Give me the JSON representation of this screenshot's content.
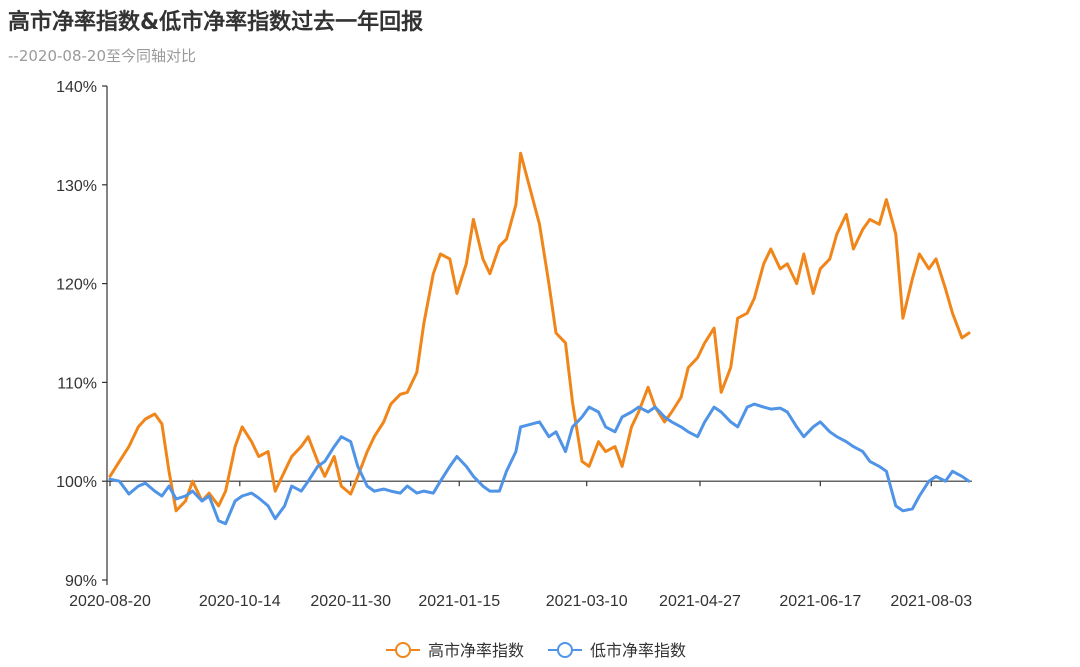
{
  "header": {
    "title": "高市净率指数&低市净率指数过去一年回报",
    "subtitle": "--2020-08-20至今同轴对比"
  },
  "chart_data": {
    "type": "line",
    "title": "高市净率指数&低市净率指数过去一年回报",
    "subtitle": "--2020-08-20至今同轴对比",
    "xlabel": "",
    "ylabel": "",
    "ylim": [
      90,
      140
    ],
    "y_ticks": [
      90,
      100,
      110,
      120,
      130,
      140
    ],
    "y_tick_labels": [
      "90%",
      "100%",
      "110%",
      "120%",
      "130%",
      "140%"
    ],
    "x_ticks": [
      "2020-08-20",
      "2020-10-14",
      "2020-11-30",
      "2021-01-15",
      "2021-03-10",
      "2021-04-27",
      "2021-06-17",
      "2021-08-03"
    ],
    "grid": false,
    "baseline": 100,
    "legend_position": "bottom-center",
    "series": [
      {
        "name": "高市净率指数",
        "color": "#f0861a",
        "points": [
          [
            "2020-08-20",
            100.5
          ],
          [
            "2020-08-24",
            102.0
          ],
          [
            "2020-08-28",
            103.5
          ],
          [
            "2020-09-01",
            105.5
          ],
          [
            "2020-09-04",
            106.3
          ],
          [
            "2020-09-08",
            106.8
          ],
          [
            "2020-09-11",
            105.8
          ],
          [
            "2020-09-14",
            101.0
          ],
          [
            "2020-09-17",
            97.0
          ],
          [
            "2020-09-21",
            98.0
          ],
          [
            "2020-09-24",
            100.0
          ],
          [
            "2020-09-28",
            98.0
          ],
          [
            "2020-10-01",
            98.8
          ],
          [
            "2020-10-05",
            97.5
          ],
          [
            "2020-10-08",
            99.0
          ],
          [
            "2020-10-12",
            103.5
          ],
          [
            "2020-10-15",
            105.5
          ],
          [
            "2020-10-19",
            104.0
          ],
          [
            "2020-10-22",
            102.5
          ],
          [
            "2020-10-26",
            103.0
          ],
          [
            "2020-10-29",
            99.0
          ],
          [
            "2020-11-02",
            101.0
          ],
          [
            "2020-11-05",
            102.5
          ],
          [
            "2020-11-09",
            103.5
          ],
          [
            "2020-11-12",
            104.5
          ],
          [
            "2020-11-16",
            102.0
          ],
          [
            "2020-11-19",
            100.5
          ],
          [
            "2020-11-23",
            102.5
          ],
          [
            "2020-11-26",
            99.5
          ],
          [
            "2020-11-30",
            98.7
          ],
          [
            "2020-12-03",
            100.5
          ],
          [
            "2020-12-07",
            103.0
          ],
          [
            "2020-12-10",
            104.5
          ],
          [
            "2020-12-14",
            106.0
          ],
          [
            "2020-12-17",
            107.8
          ],
          [
            "2020-12-21",
            108.8
          ],
          [
            "2020-12-24",
            109.0
          ],
          [
            "2020-12-28",
            111.0
          ],
          [
            "2020-12-31",
            116.0
          ],
          [
            "2021-01-04",
            121.0
          ],
          [
            "2021-01-07",
            123.0
          ],
          [
            "2021-01-11",
            122.5
          ],
          [
            "2021-01-14",
            119.0
          ],
          [
            "2021-01-18",
            122.0
          ],
          [
            "2021-01-21",
            126.5
          ],
          [
            "2021-01-25",
            122.5
          ],
          [
            "2021-01-28",
            121.0
          ],
          [
            "2021-02-01",
            123.8
          ],
          [
            "2021-02-04",
            124.5
          ],
          [
            "2021-02-08",
            128.0
          ],
          [
            "2021-02-10",
            133.2
          ],
          [
            "2021-02-18",
            126.0
          ],
          [
            "2021-02-22",
            120.0
          ],
          [
            "2021-02-25",
            115.0
          ],
          [
            "2021-03-01",
            114.0
          ],
          [
            "2021-03-04",
            108.0
          ],
          [
            "2021-03-08",
            102.0
          ],
          [
            "2021-03-11",
            101.5
          ],
          [
            "2021-03-15",
            104.0
          ],
          [
            "2021-03-18",
            103.0
          ],
          [
            "2021-03-22",
            103.5
          ],
          [
            "2021-03-25",
            101.5
          ],
          [
            "2021-03-29",
            105.5
          ],
          [
            "2021-04-01",
            107.0
          ],
          [
            "2021-04-05",
            109.5
          ],
          [
            "2021-04-08",
            107.5
          ],
          [
            "2021-04-12",
            106.0
          ],
          [
            "2021-04-15",
            107.0
          ],
          [
            "2021-04-19",
            108.5
          ],
          [
            "2021-04-22",
            111.5
          ],
          [
            "2021-04-26",
            112.5
          ],
          [
            "2021-04-29",
            114.0
          ],
          [
            "2021-05-03",
            115.5
          ],
          [
            "2021-05-06",
            109.0
          ],
          [
            "2021-05-10",
            111.5
          ],
          [
            "2021-05-13",
            116.5
          ],
          [
            "2021-05-17",
            117.0
          ],
          [
            "2021-05-20",
            118.5
          ],
          [
            "2021-05-24",
            122.0
          ],
          [
            "2021-05-27",
            123.5
          ],
          [
            "2021-05-31",
            121.5
          ],
          [
            "2021-06-03",
            122.0
          ],
          [
            "2021-06-07",
            120.0
          ],
          [
            "2021-06-10",
            123.0
          ],
          [
            "2021-06-14",
            119.0
          ],
          [
            "2021-06-17",
            121.5
          ],
          [
            "2021-06-21",
            122.5
          ],
          [
            "2021-06-24",
            125.0
          ],
          [
            "2021-06-28",
            127.0
          ],
          [
            "2021-07-01",
            123.5
          ],
          [
            "2021-07-05",
            125.5
          ],
          [
            "2021-07-08",
            126.5
          ],
          [
            "2021-07-12",
            126.0
          ],
          [
            "2021-07-15",
            128.5
          ],
          [
            "2021-07-19",
            125.0
          ],
          [
            "2021-07-22",
            116.5
          ],
          [
            "2021-07-26",
            120.5
          ],
          [
            "2021-07-29",
            123.0
          ],
          [
            "2021-08-02",
            121.5
          ],
          [
            "2021-08-05",
            122.5
          ],
          [
            "2021-08-09",
            119.5
          ],
          [
            "2021-08-12",
            117.0
          ],
          [
            "2021-08-16",
            114.5
          ],
          [
            "2021-08-19",
            115.0
          ]
        ]
      },
      {
        "name": "低市净率指数",
        "color": "#4f94e6",
        "points": [
          [
            "2020-08-20",
            100.2
          ],
          [
            "2020-08-24",
            100.0
          ],
          [
            "2020-08-28",
            98.7
          ],
          [
            "2020-09-01",
            99.5
          ],
          [
            "2020-09-04",
            99.8
          ],
          [
            "2020-09-08",
            99.0
          ],
          [
            "2020-09-11",
            98.5
          ],
          [
            "2020-09-14",
            99.5
          ],
          [
            "2020-09-17",
            98.2
          ],
          [
            "2020-09-21",
            98.5
          ],
          [
            "2020-09-24",
            99.0
          ],
          [
            "2020-09-28",
            98.0
          ],
          [
            "2020-10-01",
            98.5
          ],
          [
            "2020-10-05",
            96.0
          ],
          [
            "2020-10-08",
            95.7
          ],
          [
            "2020-10-12",
            98.0
          ],
          [
            "2020-10-15",
            98.5
          ],
          [
            "2020-10-19",
            98.8
          ],
          [
            "2020-10-22",
            98.3
          ],
          [
            "2020-10-26",
            97.5
          ],
          [
            "2020-10-29",
            96.2
          ],
          [
            "2020-11-02",
            97.5
          ],
          [
            "2020-11-05",
            99.5
          ],
          [
            "2020-11-09",
            99.0
          ],
          [
            "2020-11-12",
            100.0
          ],
          [
            "2020-11-16",
            101.5
          ],
          [
            "2020-11-19",
            102.0
          ],
          [
            "2020-11-23",
            103.5
          ],
          [
            "2020-11-26",
            104.5
          ],
          [
            "2020-11-30",
            104.0
          ],
          [
            "2020-12-03",
            101.5
          ],
          [
            "2020-12-07",
            99.5
          ],
          [
            "2020-12-10",
            99.0
          ],
          [
            "2020-12-14",
            99.2
          ],
          [
            "2020-12-17",
            99.0
          ],
          [
            "2020-12-21",
            98.8
          ],
          [
            "2020-12-24",
            99.5
          ],
          [
            "2020-12-28",
            98.8
          ],
          [
            "2020-12-31",
            99.0
          ],
          [
            "2021-01-04",
            98.8
          ],
          [
            "2021-01-07",
            100.0
          ],
          [
            "2021-01-11",
            101.5
          ],
          [
            "2021-01-14",
            102.5
          ],
          [
            "2021-01-18",
            101.5
          ],
          [
            "2021-01-21",
            100.5
          ],
          [
            "2021-01-25",
            99.5
          ],
          [
            "2021-01-28",
            99.0
          ],
          [
            "2021-02-01",
            99.0
          ],
          [
            "2021-02-04",
            101.0
          ],
          [
            "2021-02-08",
            103.0
          ],
          [
            "2021-02-10",
            105.5
          ],
          [
            "2021-02-18",
            106.0
          ],
          [
            "2021-02-22",
            104.5
          ],
          [
            "2021-02-25",
            105.0
          ],
          [
            "2021-03-01",
            103.0
          ],
          [
            "2021-03-04",
            105.5
          ],
          [
            "2021-03-08",
            106.5
          ],
          [
            "2021-03-11",
            107.5
          ],
          [
            "2021-03-15",
            107.0
          ],
          [
            "2021-03-18",
            105.5
          ],
          [
            "2021-03-22",
            105.0
          ],
          [
            "2021-03-25",
            106.5
          ],
          [
            "2021-03-29",
            107.0
          ],
          [
            "2021-04-01",
            107.5
          ],
          [
            "2021-04-05",
            107.0
          ],
          [
            "2021-04-08",
            107.5
          ],
          [
            "2021-04-12",
            106.5
          ],
          [
            "2021-04-15",
            106.0
          ],
          [
            "2021-04-19",
            105.5
          ],
          [
            "2021-04-22",
            105.0
          ],
          [
            "2021-04-26",
            104.5
          ],
          [
            "2021-04-29",
            106.0
          ],
          [
            "2021-05-03",
            107.5
          ],
          [
            "2021-05-06",
            107.0
          ],
          [
            "2021-05-10",
            106.0
          ],
          [
            "2021-05-13",
            105.5
          ],
          [
            "2021-05-17",
            107.5
          ],
          [
            "2021-05-20",
            107.8
          ],
          [
            "2021-05-24",
            107.5
          ],
          [
            "2021-05-27",
            107.3
          ],
          [
            "2021-05-31",
            107.4
          ],
          [
            "2021-06-03",
            107.0
          ],
          [
            "2021-06-07",
            105.5
          ],
          [
            "2021-06-10",
            104.5
          ],
          [
            "2021-06-14",
            105.5
          ],
          [
            "2021-06-17",
            106.0
          ],
          [
            "2021-06-21",
            105.0
          ],
          [
            "2021-06-24",
            104.5
          ],
          [
            "2021-06-28",
            104.0
          ],
          [
            "2021-07-01",
            103.5
          ],
          [
            "2021-07-05",
            103.0
          ],
          [
            "2021-07-08",
            102.0
          ],
          [
            "2021-07-12",
            101.5
          ],
          [
            "2021-07-15",
            101.0
          ],
          [
            "2021-07-19",
            97.5
          ],
          [
            "2021-07-22",
            97.0
          ],
          [
            "2021-07-26",
            97.2
          ],
          [
            "2021-07-29",
            98.5
          ],
          [
            "2021-08-02",
            100.0
          ],
          [
            "2021-08-05",
            100.5
          ],
          [
            "2021-08-09",
            100.0
          ],
          [
            "2021-08-12",
            101.0
          ],
          [
            "2021-08-16",
            100.5
          ],
          [
            "2021-08-19",
            100.0
          ]
        ]
      }
    ]
  }
}
